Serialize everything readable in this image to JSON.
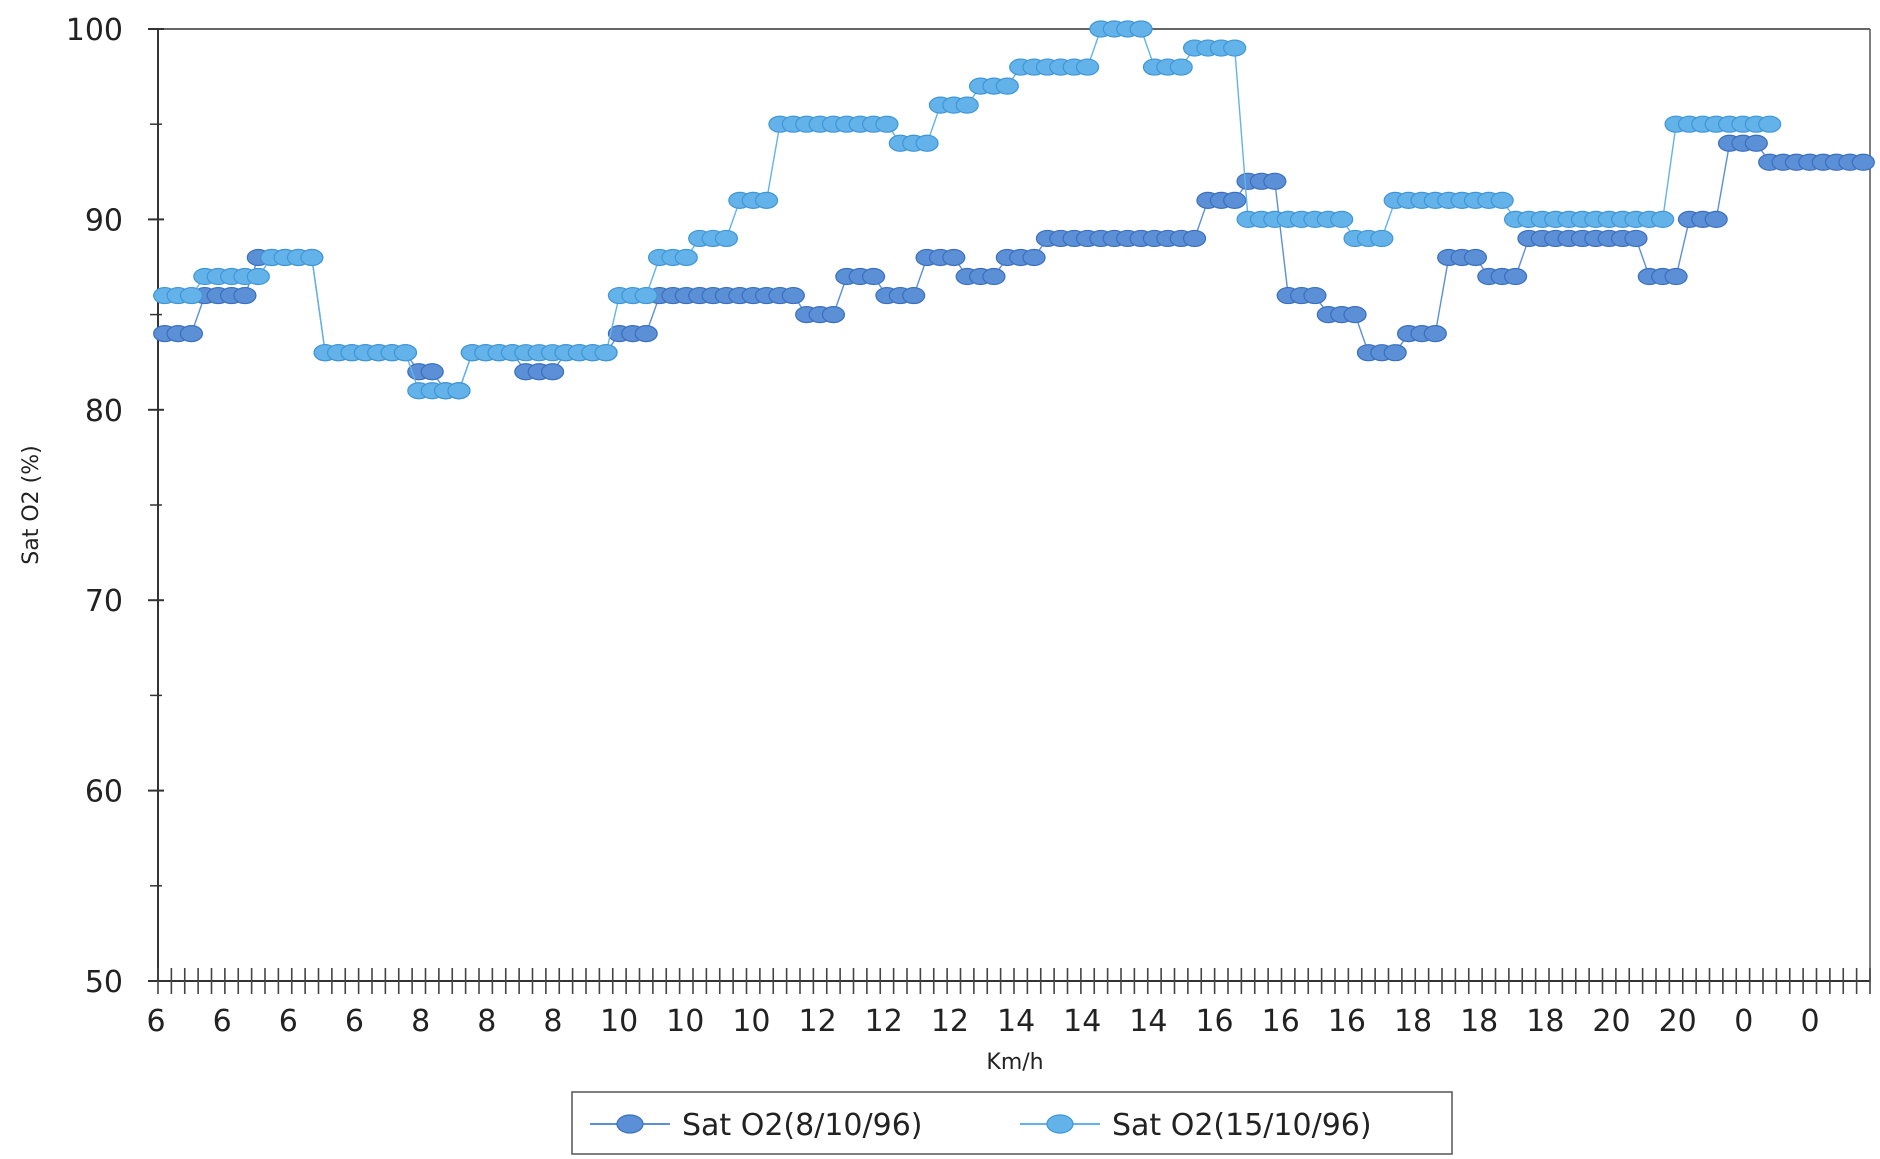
{
  "chart_data": {
    "type": "line",
    "ylabel": "Sat O2 (%)",
    "xlabel": "Km/h",
    "ylim": [
      50,
      100
    ],
    "y_ticks": [
      50,
      60,
      70,
      80,
      90,
      100
    ],
    "x_tick_labels": [
      "6",
      "6",
      "6",
      "6",
      "8",
      "8",
      "8",
      "10",
      "10",
      "10",
      "12",
      "12",
      "12",
      "14",
      "14",
      "14",
      "16",
      "16",
      "16",
      "18",
      "18",
      "18",
      "20",
      "20",
      "0",
      "0"
    ],
    "grid": false,
    "legend_position": "bottom",
    "series": [
      {
        "name": "Sat O2(8/10/96)",
        "color": "#5b8fd6",
        "marker": "hatched-ellipse",
        "values": [
          84,
          84,
          84,
          86,
          86,
          86,
          86,
          88,
          88,
          88,
          88,
          88,
          83,
          83,
          83,
          83,
          83,
          83,
          83,
          82,
          82,
          81,
          81,
          83,
          83,
          83,
          83,
          82,
          82,
          82,
          83,
          83,
          83,
          83,
          84,
          84,
          84,
          86,
          86,
          86,
          86,
          86,
          86,
          86,
          86,
          86,
          86,
          86,
          85,
          85,
          85,
          87,
          87,
          87,
          86,
          86,
          86,
          88,
          88,
          88,
          87,
          87,
          87,
          88,
          88,
          88,
          89,
          89,
          89,
          89,
          89,
          89,
          89,
          89,
          89,
          89,
          89,
          89,
          91,
          91,
          91,
          92,
          92,
          92,
          86,
          86,
          86,
          85,
          85,
          85,
          83,
          83,
          83,
          84,
          84,
          84,
          88,
          88,
          88,
          87,
          87,
          87,
          89,
          89,
          89,
          89,
          89,
          89,
          89,
          89,
          89,
          87,
          87,
          87,
          90,
          90,
          90,
          94,
          94,
          94,
          93,
          93,
          93,
          93,
          93,
          93,
          93,
          93
        ]
      },
      {
        "name": "Sat O2(15/10/96)",
        "color": "#63b3ea",
        "marker": "ellipse",
        "values": [
          86,
          86,
          86,
          87,
          87,
          87,
          87,
          87,
          88,
          88,
          88,
          88,
          83,
          83,
          83,
          83,
          83,
          83,
          83,
          81,
          81,
          81,
          81,
          83,
          83,
          83,
          83,
          83,
          83,
          83,
          83,
          83,
          83,
          83,
          86,
          86,
          86,
          88,
          88,
          88,
          89,
          89,
          89,
          91,
          91,
          91,
          95,
          95,
          95,
          95,
          95,
          95,
          95,
          95,
          95,
          94,
          94,
          94,
          96,
          96,
          96,
          97,
          97,
          97,
          98,
          98,
          98,
          98,
          98,
          98,
          100,
          100,
          100,
          100,
          98,
          98,
          98,
          99,
          99,
          99,
          99,
          90,
          90,
          90,
          90,
          90,
          90,
          90,
          90,
          89,
          89,
          89,
          91,
          91,
          91,
          91,
          91,
          91,
          91,
          91,
          91,
          90,
          90,
          90,
          90,
          90,
          90,
          90,
          90,
          90,
          90,
          90,
          90,
          95,
          95,
          95,
          95,
          95,
          95,
          95,
          95
        ]
      }
    ]
  }
}
